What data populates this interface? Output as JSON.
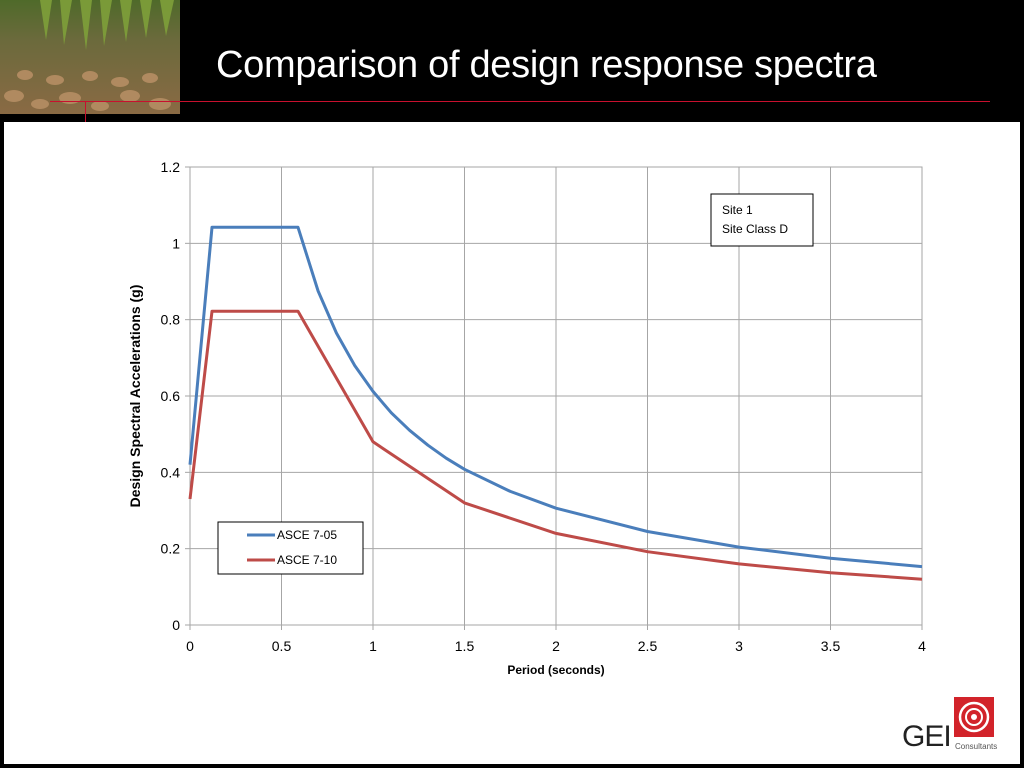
{
  "slide": {
    "title": "Comparison of design response spectra",
    "logo_text": "GEI",
    "logo_subtext": "Consultants"
  },
  "colors": {
    "accent_red": "#c8102e",
    "series_blue": "#4a7ebb",
    "series_red": "#be4b48",
    "grid": "#a6a6a6"
  },
  "chart_data": {
    "type": "line",
    "title": "",
    "xlabel": "Period (seconds)",
    "ylabel": "Design Spectral Accelerations (g)",
    "xlim": [
      0,
      4
    ],
    "ylim": [
      0,
      1.2
    ],
    "xticks": [
      "0",
      "0.5",
      "1",
      "1.5",
      "2",
      "2.5",
      "3",
      "3.5",
      "4"
    ],
    "yticks": [
      "0",
      "0.2",
      "0.4",
      "0.6",
      "0.8",
      "1",
      "1.2"
    ],
    "grid": true,
    "legend_position": "bottom-left",
    "annotation": [
      "Site 1",
      "Site Class D"
    ],
    "series": [
      {
        "name": "ASCE 7-05",
        "color": "#4a7ebb",
        "points": [
          [
            0,
            0.42
          ],
          [
            0.12,
            1.042
          ],
          [
            0.59,
            1.042
          ],
          [
            0.7,
            0.875
          ],
          [
            0.8,
            0.765
          ],
          [
            0.9,
            0.68
          ],
          [
            1.0,
            0.612
          ],
          [
            1.1,
            0.556
          ],
          [
            1.2,
            0.51
          ],
          [
            1.3,
            0.471
          ],
          [
            1.4,
            0.437
          ],
          [
            1.5,
            0.408
          ],
          [
            1.75,
            0.35
          ],
          [
            2.0,
            0.306
          ],
          [
            2.5,
            0.245
          ],
          [
            3.0,
            0.204
          ],
          [
            3.5,
            0.175
          ],
          [
            4.0,
            0.153
          ]
        ]
      },
      {
        "name": "ASCE 7-10",
        "color": "#be4b48",
        "points": [
          [
            0,
            0.33
          ],
          [
            0.12,
            0.822
          ],
          [
            0.59,
            0.822
          ],
          [
            1.0,
            0.48
          ],
          [
            1.5,
            0.32
          ],
          [
            2.0,
            0.24
          ],
          [
            2.5,
            0.192
          ],
          [
            3.0,
            0.16
          ],
          [
            3.5,
            0.137
          ],
          [
            4.0,
            0.12
          ]
        ]
      }
    ]
  }
}
